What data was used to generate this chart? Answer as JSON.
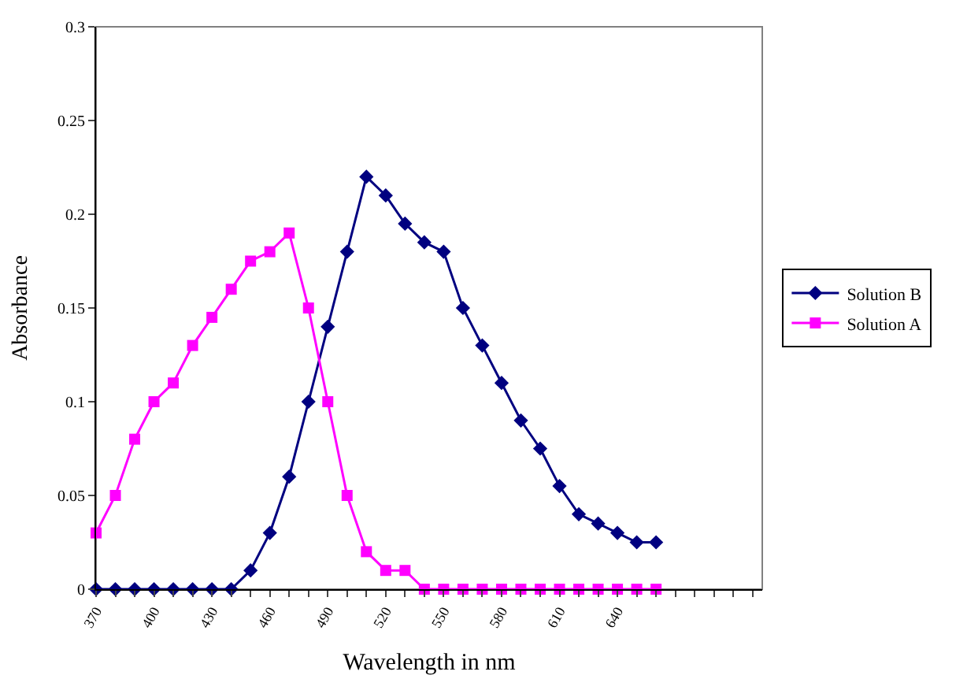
{
  "chart_data": {
    "type": "line",
    "xlabel": "Wavelength in nm",
    "ylabel": "Absorbance",
    "x": [
      370,
      380,
      390,
      400,
      410,
      420,
      430,
      440,
      450,
      460,
      470,
      480,
      490,
      500,
      510,
      520,
      530,
      540,
      550,
      560,
      570,
      580,
      590,
      600,
      610,
      620,
      630,
      640,
      650,
      660
    ],
    "series": [
      {
        "name": "Solution B",
        "color": "#000080",
        "marker": "diamond",
        "values": [
          0,
          0,
          0,
          0,
          0,
          0,
          0,
          0,
          0.01,
          0.03,
          0.06,
          0.1,
          0.14,
          0.18,
          0.22,
          0.21,
          0.195,
          0.185,
          0.18,
          0.15,
          0.13,
          0.11,
          0.09,
          0.075,
          0.055,
          0.04,
          0.035,
          0.03,
          0.025,
          0.025
        ]
      },
      {
        "name": "Solution A",
        "color": "#ff00ff",
        "marker": "square",
        "values": [
          0.03,
          0.05,
          0.08,
          0.1,
          0.11,
          0.13,
          0.145,
          0.16,
          0.175,
          0.18,
          0.19,
          0.15,
          0.1,
          0.05,
          0.02,
          0.01,
          0.01,
          0,
          0,
          0,
          0,
          0,
          0,
          0,
          0,
          0,
          0,
          0,
          0,
          0
        ]
      }
    ],
    "xlim": [
      370,
      715
    ],
    "xticks": [
      370,
      {
        "value": 380,
        "label": null
      },
      {
        "value": 390,
        "label": null
      },
      400,
      {
        "value": 410,
        "label": null
      },
      {
        "value": 420,
        "label": null
      },
      430,
      {
        "value": 440,
        "label": null
      },
      {
        "value": 450,
        "label": null
      },
      460,
      {
        "value": 470,
        "label": null
      },
      {
        "value": 480,
        "label": null
      },
      490,
      {
        "value": 500,
        "label": null
      },
      {
        "value": 510,
        "label": null
      },
      520,
      {
        "value": 530,
        "label": null
      },
      {
        "value": 540,
        "label": null
      },
      550,
      {
        "value": 560,
        "label": null
      },
      {
        "value": 570,
        "label": null
      },
      580,
      {
        "value": 590,
        "label": null
      },
      {
        "value": 600,
        "label": null
      },
      610,
      {
        "value": 620,
        "label": null
      },
      {
        "value": 630,
        "label": null
      },
      640,
      {
        "value": 650,
        "label": null
      },
      {
        "value": 660,
        "label": null
      },
      {
        "value": 670,
        "label": null
      },
      {
        "value": 680,
        "label": null
      },
      {
        "value": 690,
        "label": null
      },
      {
        "value": 700,
        "label": null
      },
      {
        "value": 710,
        "label": null
      }
    ],
    "ylim": [
      0,
      0.3
    ],
    "yticks": [
      0,
      0.05,
      0.1,
      0.15,
      0.2,
      0.25,
      0.3
    ],
    "grid": false,
    "legend": "right",
    "line_style": "solid"
  }
}
